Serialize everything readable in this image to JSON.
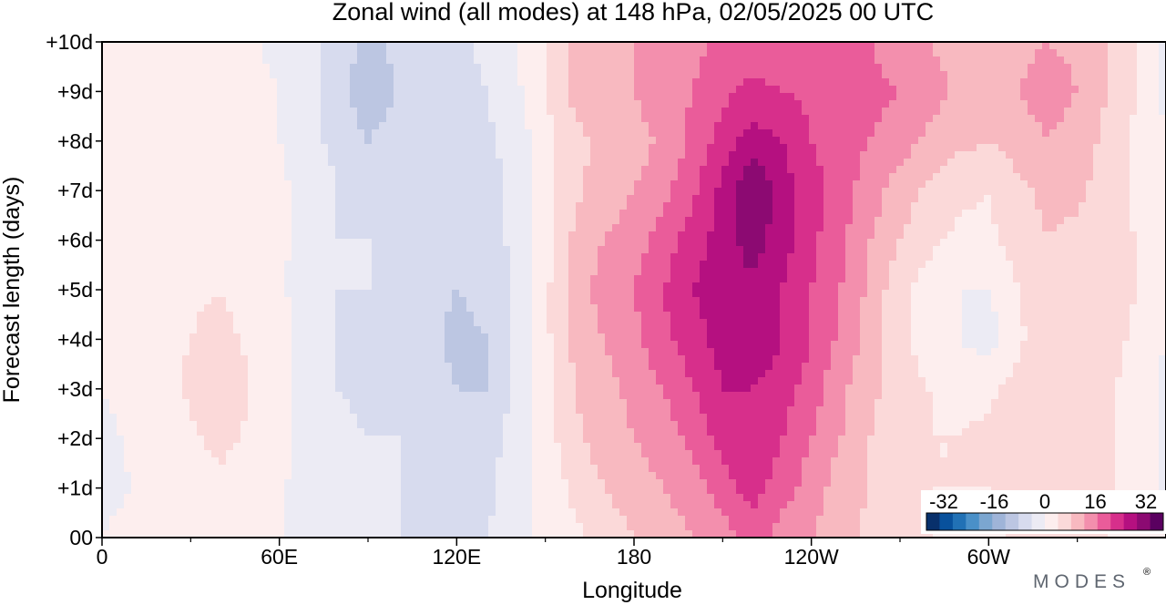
{
  "chart_data": {
    "type": "heatmap",
    "title": "Zonal wind (all modes) at 148 hPa,  02/05/2025  00 UTC",
    "xlabel": "Longitude",
    "ylabel": "Forecast length (days)",
    "x_ticks": [
      {
        "lon": 0,
        "label": "0"
      },
      {
        "lon": 60,
        "label": "60E"
      },
      {
        "lon": 120,
        "label": "120E"
      },
      {
        "lon": 180,
        "label": "180"
      },
      {
        "lon": 240,
        "label": "120W"
      },
      {
        "lon": 300,
        "label": "60W"
      }
    ],
    "x_minor_ticks": [
      30,
      90,
      150,
      210,
      270,
      330
    ],
    "xlim": [
      0,
      360
    ],
    "y_ticks": [
      {
        "day": 0,
        "label": "00"
      },
      {
        "day": 1,
        "label": "+1d"
      },
      {
        "day": 2,
        "label": "+2d"
      },
      {
        "day": 3,
        "label": "+3d"
      },
      {
        "day": 4,
        "label": "+4d"
      },
      {
        "day": 5,
        "label": "+5d"
      },
      {
        "day": 6,
        "label": "+6d"
      },
      {
        "day": 7,
        "label": "+7d"
      },
      {
        "day": 8,
        "label": "+8d"
      },
      {
        "day": 9,
        "label": "+9d"
      },
      {
        "day": 10,
        "label": "+10d"
      }
    ],
    "ylim": [
      0,
      10
    ],
    "colorbar": {
      "labels": [
        "-32",
        "-16",
        "0",
        "16",
        "32"
      ],
      "levels": [
        -36,
        -32,
        -28,
        -24,
        -20,
        -16,
        -12,
        -8,
        -4,
        0,
        4,
        8,
        12,
        16,
        20,
        24,
        28,
        32,
        36
      ],
      "colors": [
        "#08306b",
        "#08519c",
        "#2171b5",
        "#4a90c8",
        "#7ba6d0",
        "#9fb4d8",
        "#bcc6e2",
        "#d7dbee",
        "#ecebf4",
        "#fdeeee",
        "#fbd9d9",
        "#f8b9c0",
        "#f38fad",
        "#ea5c9a",
        "#d72f8b",
        "#b51080",
        "#8c0a72",
        "#5a0060"
      ],
      "position": "bottom-right"
    },
    "grid": false,
    "lon_samples": [
      0,
      20,
      40,
      60,
      70,
      80,
      90,
      100,
      110,
      120,
      130,
      140,
      150,
      160,
      170,
      180,
      190,
      200,
      210,
      220,
      230,
      240,
      250,
      260,
      270,
      280,
      290,
      300,
      310,
      320,
      330,
      340,
      350,
      360
    ],
    "day_samples": [
      0,
      1,
      2,
      3,
      4,
      5,
      6,
      7,
      8,
      9,
      10
    ],
    "values": [
      [
        0,
        2,
        3,
        1,
        -3,
        -3,
        -4,
        -4,
        -5,
        -5,
        -4,
        -2,
        1,
        3,
        6,
        8,
        10,
        12,
        14,
        18,
        14,
        12,
        9,
        7,
        5,
        4,
        3,
        3,
        5,
        6,
        5,
        4,
        2,
        0
      ],
      [
        -1,
        1,
        3,
        1,
        -3,
        -3,
        -4,
        -4,
        -5,
        -6,
        -5,
        -2,
        1,
        5,
        8,
        10,
        12,
        14,
        18,
        22,
        18,
        14,
        10,
        8,
        5,
        4,
        4,
        4,
        6,
        7,
        6,
        5,
        2,
        -1
      ],
      [
        -1,
        2,
        5,
        2,
        -3,
        -3,
        -4,
        -4,
        -5,
        -7,
        -6,
        -2,
        2,
        7,
        10,
        12,
        14,
        17,
        22,
        24,
        20,
        16,
        12,
        8,
        5,
        4,
        4,
        5,
        6,
        8,
        6,
        5,
        2,
        -1
      ],
      [
        0,
        3,
        6,
        2,
        -3,
        -4,
        -5,
        -5,
        -6,
        -8,
        -8,
        -3,
        3,
        8,
        11,
        13,
        16,
        20,
        24,
        24,
        22,
        18,
        13,
        9,
        6,
        4,
        3,
        3,
        6,
        8,
        7,
        5,
        2,
        -1
      ],
      [
        0,
        3,
        5,
        2,
        -3,
        -4,
        -5,
        -5,
        -7,
        -9,
        -8,
        -3,
        3,
        9,
        12,
        15,
        19,
        22,
        26,
        28,
        24,
        20,
        15,
        10,
        5,
        2,
        0,
        -2,
        3,
        7,
        7,
        6,
        3,
        0
      ],
      [
        1,
        3,
        4,
        1,
        -3,
        -4,
        -4,
        -5,
        -7,
        -8,
        -7,
        -3,
        3,
        10,
        14,
        16,
        20,
        24,
        26,
        27,
        24,
        20,
        16,
        11,
        5,
        2,
        0,
        0,
        4,
        8,
        8,
        6,
        4,
        1
      ],
      [
        1,
        2,
        3,
        1,
        -2,
        -4,
        -4,
        -5,
        -6,
        -7,
        -6,
        -3,
        2,
        9,
        12,
        14,
        18,
        22,
        26,
        30,
        26,
        21,
        17,
        12,
        8,
        5,
        3,
        3,
        6,
        8,
        7,
        6,
        4,
        2
      ],
      [
        1,
        2,
        3,
        1,
        -2,
        -4,
        -6,
        -5,
        -6,
        -7,
        -6,
        -3,
        2,
        7,
        10,
        12,
        15,
        19,
        25,
        32,
        26,
        22,
        18,
        14,
        10,
        7,
        5,
        4,
        7,
        9,
        9,
        6,
        3,
        0
      ],
      [
        2,
        2,
        3,
        0,
        -3,
        -5,
        -8,
        -6,
        -6,
        -6,
        -5,
        -2,
        2,
        7,
        9,
        10,
        13,
        17,
        22,
        26,
        24,
        20,
        17,
        16,
        14,
        11,
        9,
        8,
        10,
        12,
        10,
        7,
        3,
        0
      ],
      [
        1,
        2,
        2,
        0,
        -3,
        -6,
        -11,
        -8,
        -7,
        -6,
        -4,
        -1,
        4,
        9,
        11,
        12,
        15,
        16,
        19,
        21,
        20,
        19,
        18,
        17,
        16,
        14,
        11,
        10,
        12,
        14,
        12,
        8,
        4,
        -1
      ],
      [
        1,
        2,
        2,
        -1,
        -3,
        -6,
        -9,
        -7,
        -6,
        -5,
        -3,
        0,
        4,
        9,
        11,
        12,
        14,
        15,
        17,
        18,
        18,
        18,
        17,
        16,
        14,
        12,
        10,
        10,
        11,
        12,
        11,
        8,
        4,
        -1
      ]
    ]
  },
  "brand": {
    "text": "MODES",
    "mark": "®"
  }
}
